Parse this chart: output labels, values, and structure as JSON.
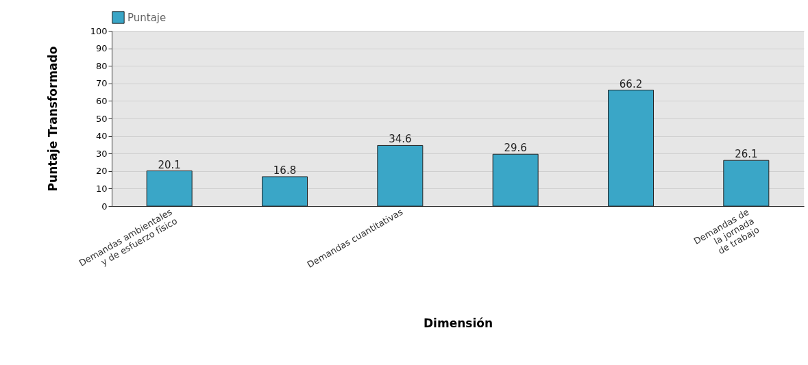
{
  "chart_data": {
    "type": "bar",
    "xlabel": "Dimensión",
    "ylabel": "Puntaje Transformado",
    "categories": [
      "Demandas ambientales\ny de esfuerzo físico",
      null,
      "Demandas cuantitativas",
      null,
      null,
      "Demandas de\nla jornada\nde trabajo"
    ],
    "series": [
      {
        "name": "Puntaje",
        "color": "#3aa6c7",
        "values": [
          20.1,
          16.8,
          34.6,
          29.6,
          66.2,
          26.1
        ]
      }
    ],
    "ylim": [
      0,
      100
    ],
    "yticks": [
      0,
      10,
      20,
      30,
      40,
      50,
      60,
      70,
      80,
      90,
      100
    ],
    "grid": "y",
    "legend": "top",
    "data_labels": true
  }
}
